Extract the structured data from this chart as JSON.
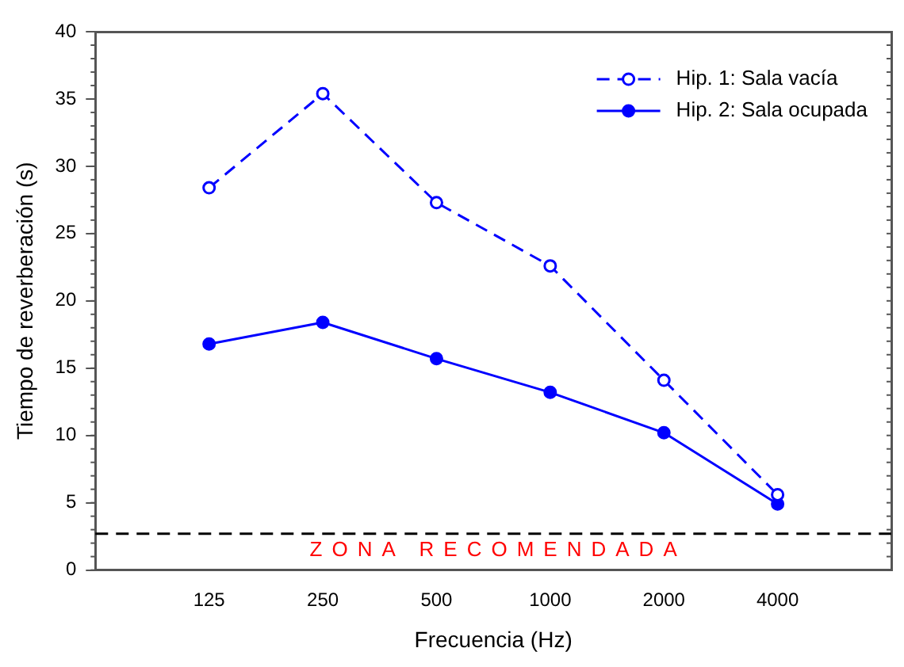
{
  "chart_data": {
    "type": "line",
    "xlabel": "Frecuencia (Hz)",
    "ylabel": "Tiempo de reverberación (s)",
    "categories": [
      "125",
      "250",
      "500",
      "1000",
      "2000",
      "4000"
    ],
    "series": [
      {
        "name": "Hip. 1: Sala vacía",
        "color": "#0000ff",
        "values": [
          28.4,
          35.4,
          27.3,
          22.6,
          14.1,
          5.6
        ],
        "line_style": "dashed",
        "marker": "circle"
      },
      {
        "name": "Hip. 2: Sala ocupada",
        "color": "#0000ff",
        "values": [
          16.8,
          18.4,
          15.7,
          13.2,
          10.2,
          4.9
        ],
        "line_style": "solid",
        "marker": "circle"
      }
    ],
    "ylim": [
      0,
      40
    ],
    "yticks": [
      0,
      5,
      10,
      15,
      20,
      25,
      30,
      35,
      40
    ],
    "ref_lines": [
      {
        "axis": "y",
        "value": 2.7,
        "label": "ZONA RECOMENDADA",
        "color": "#000000",
        "line_style": "dashed"
      }
    ],
    "grid": false,
    "legend": "top right"
  }
}
